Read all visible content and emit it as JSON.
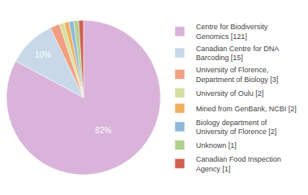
{
  "chart_data": {
    "type": "pie",
    "categories": [
      "Centre for Biodiversity\nGenomics [121]",
      "Canadian Centre for DNA\nBarcoding [15]",
      "University of Florence,\nDepartment of Biology [3]",
      "University of Oulu [2]",
      "Mined from GenBank, NCBI [2]",
      "Biology department of\nUniversity of Florence [2]",
      "Unknown [1]",
      "Canadian Food Inspection\nAgency [1]"
    ],
    "values": [
      82,
      10,
      2,
      1,
      1,
      1,
      1,
      1
    ],
    "value_labels": [
      "82%",
      "10%",
      null,
      null,
      null,
      null,
      null,
      null
    ],
    "colors": [
      "#d9b3d9",
      "#c8d8e8",
      "#f0a080",
      "#d4e0a0",
      "#f0b060",
      "#90b8d8",
      "#b0d090",
      "#d06050"
    ],
    "data_labels": true,
    "legend": "right"
  }
}
